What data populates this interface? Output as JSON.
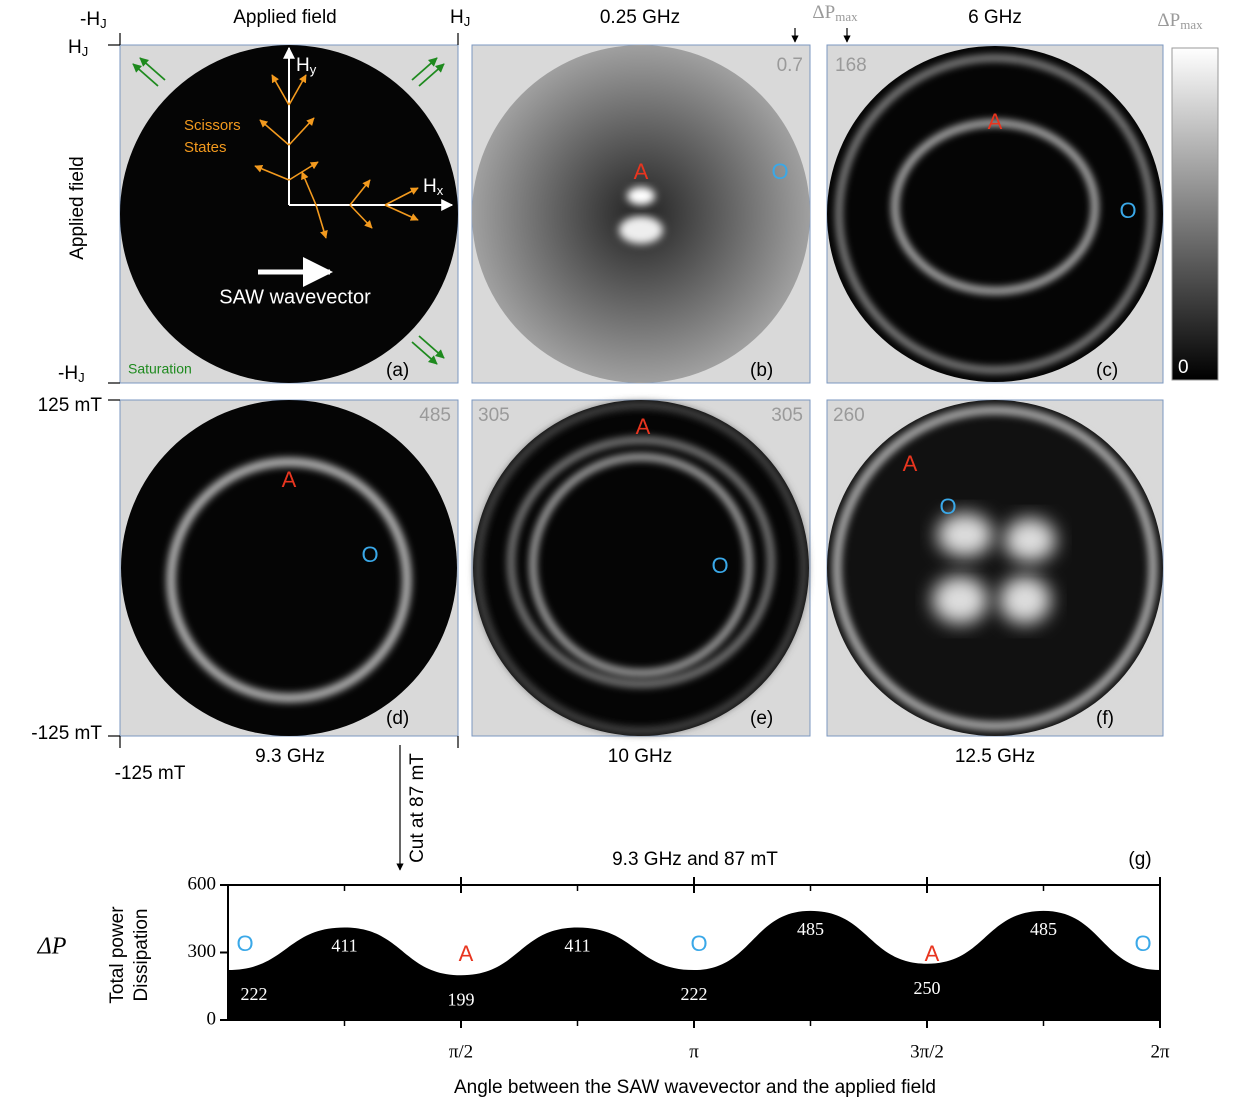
{
  "top_axis": {
    "min": {
      "text": "-H",
      "sub": "J"
    },
    "title": "Applied field",
    "max": {
      "text": "H",
      "sub": "J"
    }
  },
  "left_axis": {
    "max": {
      "text": "H",
      "sub": "J"
    },
    "title": "Applied field",
    "min": {
      "text": "-H",
      "sub": "J"
    }
  },
  "field_axis": {
    "y_max": "125 mT",
    "y_min": "-125 mT",
    "x_min": "-125 mT"
  },
  "colorbar": {
    "label": {
      "text": "ΔP",
      "sub": "max"
    },
    "min": 0
  },
  "panels": [
    {
      "id": "(a)",
      "axis_x": {
        "text": "H",
        "sub": "x"
      },
      "axis_y": {
        "text": "H",
        "sub": "y"
      },
      "annotation": [
        "Scissors",
        "States"
      ],
      "arrow_label": "SAW wavevector",
      "corner": "Saturation"
    },
    {
      "id": "(b)",
      "frequency": "0.25 GHz",
      "max": 0.7,
      "markers": [
        "A",
        "O"
      ]
    },
    {
      "id": "(c)",
      "frequency": "6 GHz",
      "max": 168,
      "markers": [
        "A",
        "O"
      ]
    },
    {
      "id": "(d)",
      "frequency": "9.3 GHz",
      "max": 485,
      "markers": [
        "A",
        "O"
      ]
    },
    {
      "id": "(e)",
      "frequency": "10 GHz",
      "max": 305,
      "markers": [
        "A",
        "O"
      ]
    },
    {
      "id": "(f)",
      "frequency": "12.5 GHz",
      "max": 260,
      "markers": [
        "A",
        "O"
      ]
    }
  ],
  "cut_label": "Cut at 87 mT",
  "chart_data": {
    "type": "area",
    "title": "9.3 GHz and 87 mT",
    "panel_label": "(g)",
    "ylabel": [
      "Total power",
      "Dissipation"
    ],
    "ylabel_symbol": "ΔP",
    "xlabel": "Angle between the SAW wavevector and the applied field",
    "x": [
      0,
      0.7854,
      1.5708,
      2.3562,
      3.1416,
      3.927,
      4.7124,
      5.4978,
      6.2832
    ],
    "values": [
      222,
      411,
      199,
      411,
      222,
      485,
      250,
      485,
      222
    ],
    "color": "#000000",
    "xlim": [
      0,
      6.2832
    ],
    "xticks": [
      {
        "value": 1.5708,
        "label": "π/2"
      },
      {
        "value": 3.1416,
        "label": "π"
      },
      {
        "value": 4.7124,
        "label": "3π/2"
      },
      {
        "value": 6.2832,
        "label": "2π"
      }
    ],
    "ylim": [
      0,
      600
    ],
    "yticks": [
      0,
      300,
      600
    ],
    "markers": [
      "O",
      "A",
      "O",
      "A",
      "O"
    ]
  }
}
